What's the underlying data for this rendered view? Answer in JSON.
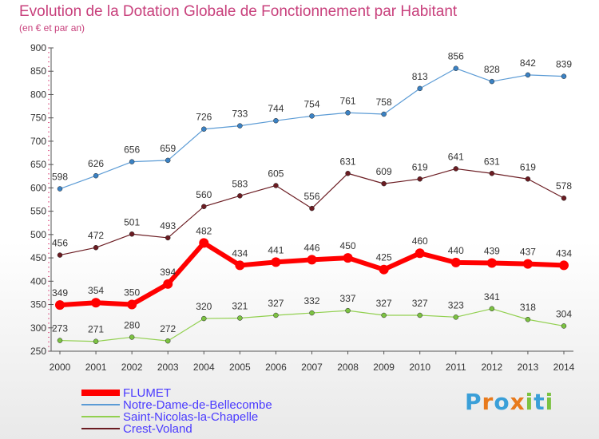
{
  "title": "Evolution de la Dotation Globale de Fonctionnement par Habitant",
  "subtitle": "(en € et par an)",
  "logo": {
    "letters": [
      "P",
      "r",
      "o",
      "x",
      "i",
      "t",
      "i"
    ],
    "colors": [
      "#3a9fd8",
      "#e87a1c",
      "#3a9fd8",
      "#e87a1c",
      "#7cc242",
      "#3a9fd8",
      "#7cc242"
    ]
  },
  "chart_data": {
    "type": "line",
    "categories": [
      "2000",
      "2001",
      "2002",
      "2003",
      "2004",
      "2005",
      "2006",
      "2007",
      "2008",
      "2009",
      "2010",
      "2011",
      "2012",
      "2013",
      "2014"
    ],
    "ylim": [
      250,
      900
    ],
    "yticks": [
      250,
      300,
      350,
      400,
      450,
      500,
      550,
      600,
      650,
      700,
      750,
      800,
      850,
      900
    ],
    "grid": false,
    "legend_position": "bottom-left",
    "series": [
      {
        "name": "Notre-Dame-de-Bellecombe",
        "color": "#5b9bd5",
        "marker": "#3b82c4",
        "width": 1.2,
        "values": [
          598,
          626,
          656,
          659,
          726,
          733,
          744,
          754,
          761,
          758,
          813,
          856,
          828,
          842,
          839
        ]
      },
      {
        "name": "Crest-Voland",
        "color": "#6b1c22",
        "marker": "#6b1c22",
        "width": 1.2,
        "values": [
          456,
          472,
          501,
          493,
          560,
          583,
          605,
          556,
          631,
          609,
          619,
          641,
          631,
          619,
          578
        ]
      },
      {
        "name": "Saint-Nicolas-la-Chapelle",
        "color": "#92d050",
        "marker": "#7cc242",
        "width": 1.2,
        "values": [
          273,
          271,
          280,
          272,
          320,
          321,
          327,
          332,
          337,
          327,
          327,
          323,
          341,
          318,
          304
        ]
      },
      {
        "name": "FLUMET",
        "color": "#ff0000",
        "marker": "#ff0000",
        "width": 6,
        "values": [
          349,
          354,
          350,
          394,
          482,
          434,
          441,
          446,
          450,
          425,
          460,
          440,
          439,
          437,
          434
        ]
      }
    ],
    "legend": [
      {
        "name": "FLUMET",
        "color": "#ff0000",
        "width": 8
      },
      {
        "name": "Notre-Dame-de-Bellecombe",
        "color": "#5b9bd5",
        "width": 2
      },
      {
        "name": "Saint-Nicolas-la-Chapelle",
        "color": "#92d050",
        "width": 2
      },
      {
        "name": "Crest-Voland",
        "color": "#6b1c22",
        "width": 2
      }
    ]
  }
}
